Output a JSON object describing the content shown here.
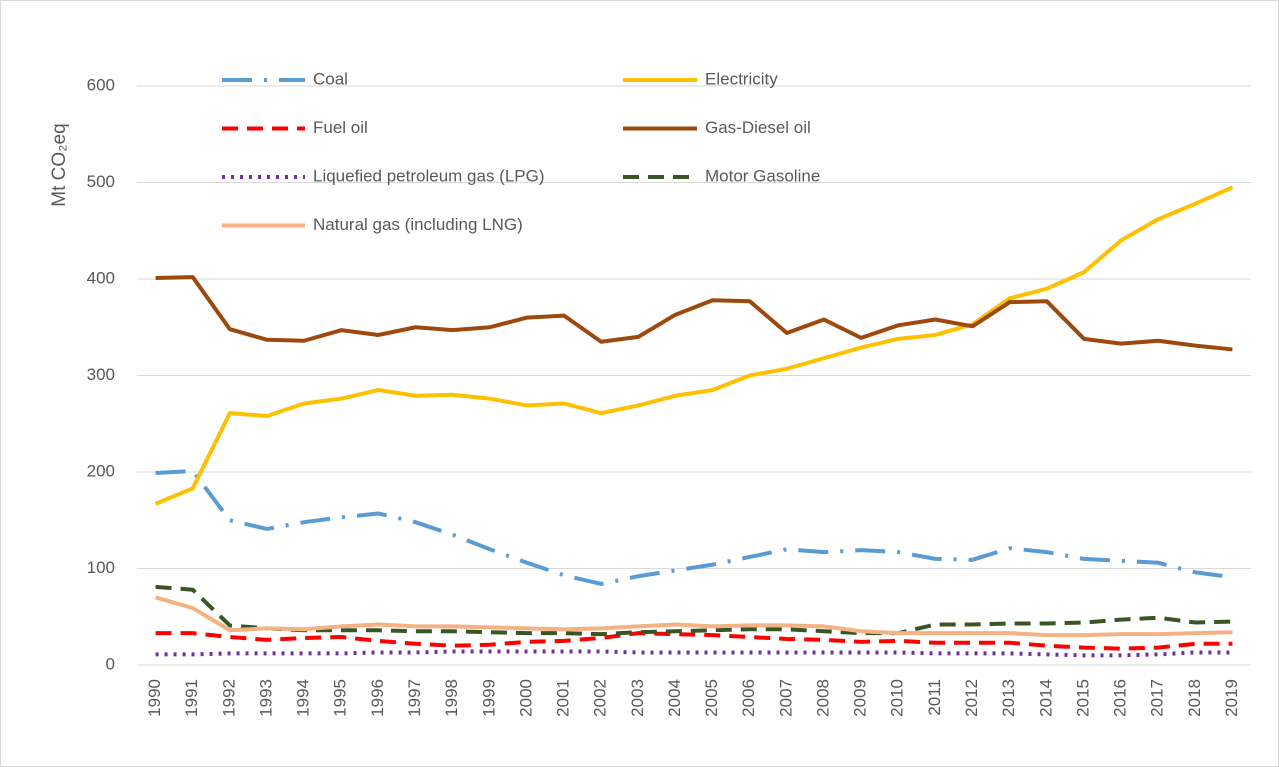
{
  "chart_data": {
    "type": "line",
    "y_label": "Mt CO₂eq",
    "categories": [
      "1990",
      "1991",
      "1992",
      "1993",
      "1994",
      "1995",
      "1996",
      "1997",
      "1998",
      "1999",
      "2000",
      "2001",
      "2002",
      "2003",
      "2004",
      "2005",
      "2006",
      "2007",
      "2008",
      "2009",
      "2010",
      "2011",
      "2012",
      "2013",
      "2014",
      "2015",
      "2016",
      "2017",
      "2018",
      "2019"
    ],
    "ylim": [
      0,
      600
    ],
    "yticks": [
      0,
      100,
      200,
      300,
      400,
      500,
      600
    ],
    "grid": true,
    "series": [
      {
        "name": "Coal",
        "color": "#5b9bd5",
        "dash": "dash-dot",
        "values": [
          199,
          201,
          150,
          141,
          148,
          153,
          157,
          148,
          135,
          120,
          106,
          93,
          84,
          92,
          98,
          104,
          112,
          120,
          117,
          119,
          117,
          110,
          109,
          121,
          117,
          110,
          108,
          106,
          96,
          91
        ]
      },
      {
        "name": "Electricity",
        "color": "#ffc000",
        "dash": "solid",
        "values": [
          167,
          183,
          261,
          258,
          271,
          276,
          285,
          279,
          280,
          276,
          269,
          271,
          261,
          269,
          279,
          285,
          300,
          307,
          318,
          329,
          338,
          342,
          353,
          380,
          390,
          407,
          440,
          462,
          478,
          495
        ]
      },
      {
        "name": "Fuel oil",
        "color": "#ff0000",
        "dash": "dash",
        "values": [
          33,
          33,
          29,
          26,
          28,
          29,
          25,
          22,
          20,
          21,
          24,
          25,
          28,
          33,
          32,
          31,
          29,
          27,
          26,
          24,
          25,
          23,
          23,
          23,
          20,
          18,
          17,
          18,
          22,
          22
        ]
      },
      {
        "name": "Gas-Diesel oil",
        "color": "#9e480e",
        "dash": "solid",
        "values": [
          401,
          402,
          348,
          337,
          336,
          347,
          342,
          350,
          347,
          350,
          360,
          362,
          335,
          340,
          363,
          378,
          377,
          344,
          358,
          339,
          352,
          358,
          351,
          376,
          377,
          338,
          333,
          336,
          331,
          327
        ]
      },
      {
        "name": "Liquefied petroleum gas (LPG)",
        "color": "#7030a0",
        "dash": "dot",
        "values": [
          11,
          11,
          12,
          12,
          12,
          12,
          13,
          13,
          14,
          14,
          14,
          14,
          14,
          13,
          13,
          13,
          13,
          13,
          13,
          13,
          13,
          12,
          12,
          12,
          11,
          10,
          10,
          11,
          13,
          13
        ]
      },
      {
        "name": "Motor Gasoline",
        "color": "#375623",
        "dash": "dash",
        "values": [
          81,
          78,
          41,
          38,
          36,
          36,
          36,
          35,
          35,
          34,
          33,
          33,
          32,
          34,
          35,
          36,
          37,
          37,
          35,
          33,
          33,
          42,
          42,
          43,
          43,
          44,
          47,
          49,
          44,
          45
        ]
      },
      {
        "name": "Natural gas (including LNG)",
        "color": "#f4b183",
        "dash": "solid",
        "values": [
          70,
          59,
          36,
          38,
          37,
          40,
          42,
          40,
          40,
          39,
          38,
          37,
          38,
          40,
          42,
          40,
          41,
          41,
          40,
          35,
          33,
          33,
          33,
          33,
          31,
          31,
          32,
          32,
          33,
          34
        ]
      }
    ]
  }
}
